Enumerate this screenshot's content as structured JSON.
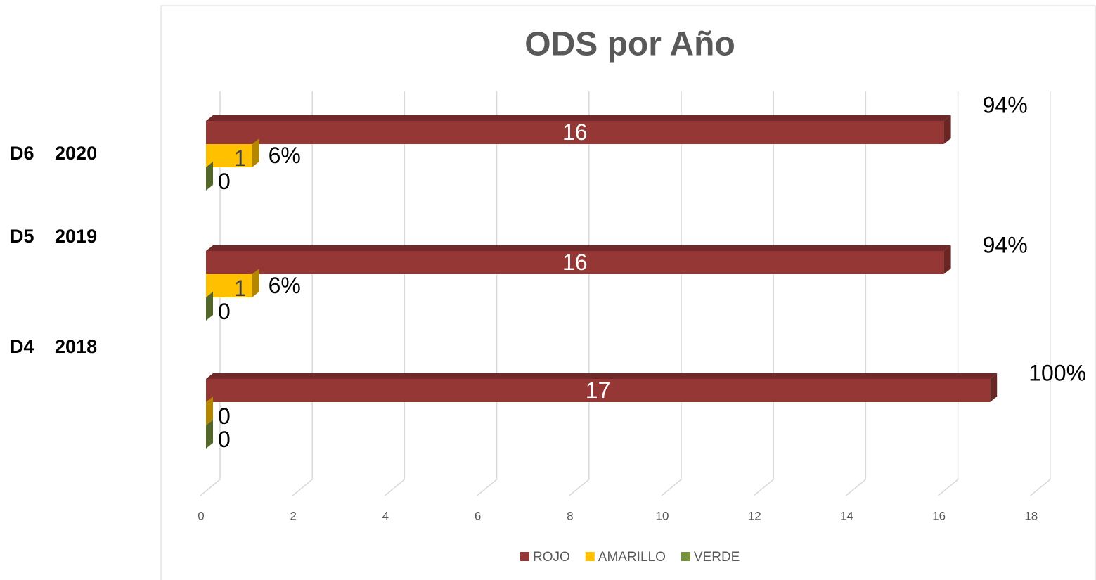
{
  "chart_data": {
    "type": "bar3d_horizontal",
    "title": "ODS por Año",
    "categories": [
      "D6 2020",
      "D5 2019",
      "D4 2018"
    ],
    "series": [
      {
        "name": "ROJO",
        "color": "#953735",
        "values": [
          16,
          16,
          17
        ],
        "percent_labels": [
          "94%",
          "94%",
          "100%"
        ]
      },
      {
        "name": "AMARILLO",
        "color": "#FFC000",
        "values": [
          1,
          1,
          0
        ],
        "percent_labels": [
          "6%",
          "6%",
          null
        ]
      },
      {
        "name": "VERDE",
        "color": "#77933C",
        "values": [
          0,
          0,
          0
        ]
      }
    ],
    "xlim": [
      0,
      18
    ],
    "xticks": [
      0,
      2,
      4,
      6,
      8,
      10,
      12,
      14,
      16,
      18
    ],
    "grid": true,
    "legend": "bottom"
  }
}
